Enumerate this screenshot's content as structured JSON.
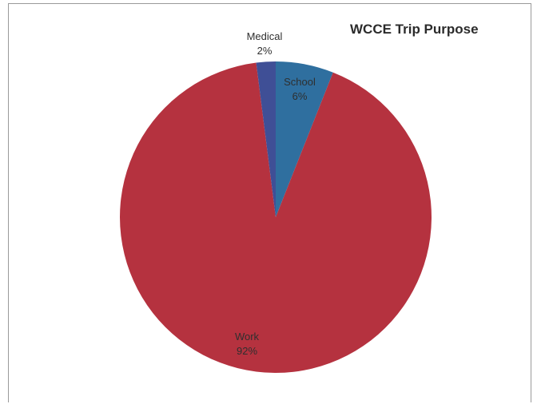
{
  "chart_data": {
    "type": "pie",
    "title": "WCCE Trip Purpose",
    "slices": [
      {
        "label": "School",
        "value_label": "6%",
        "value": 6,
        "color": "#2f6f9f"
      },
      {
        "label": "Work",
        "value_label": "92%",
        "value": 92,
        "color": "#b5323f"
      },
      {
        "label": "Medical",
        "value_label": "2%",
        "value": 2,
        "color": "#3f4f96"
      }
    ]
  }
}
